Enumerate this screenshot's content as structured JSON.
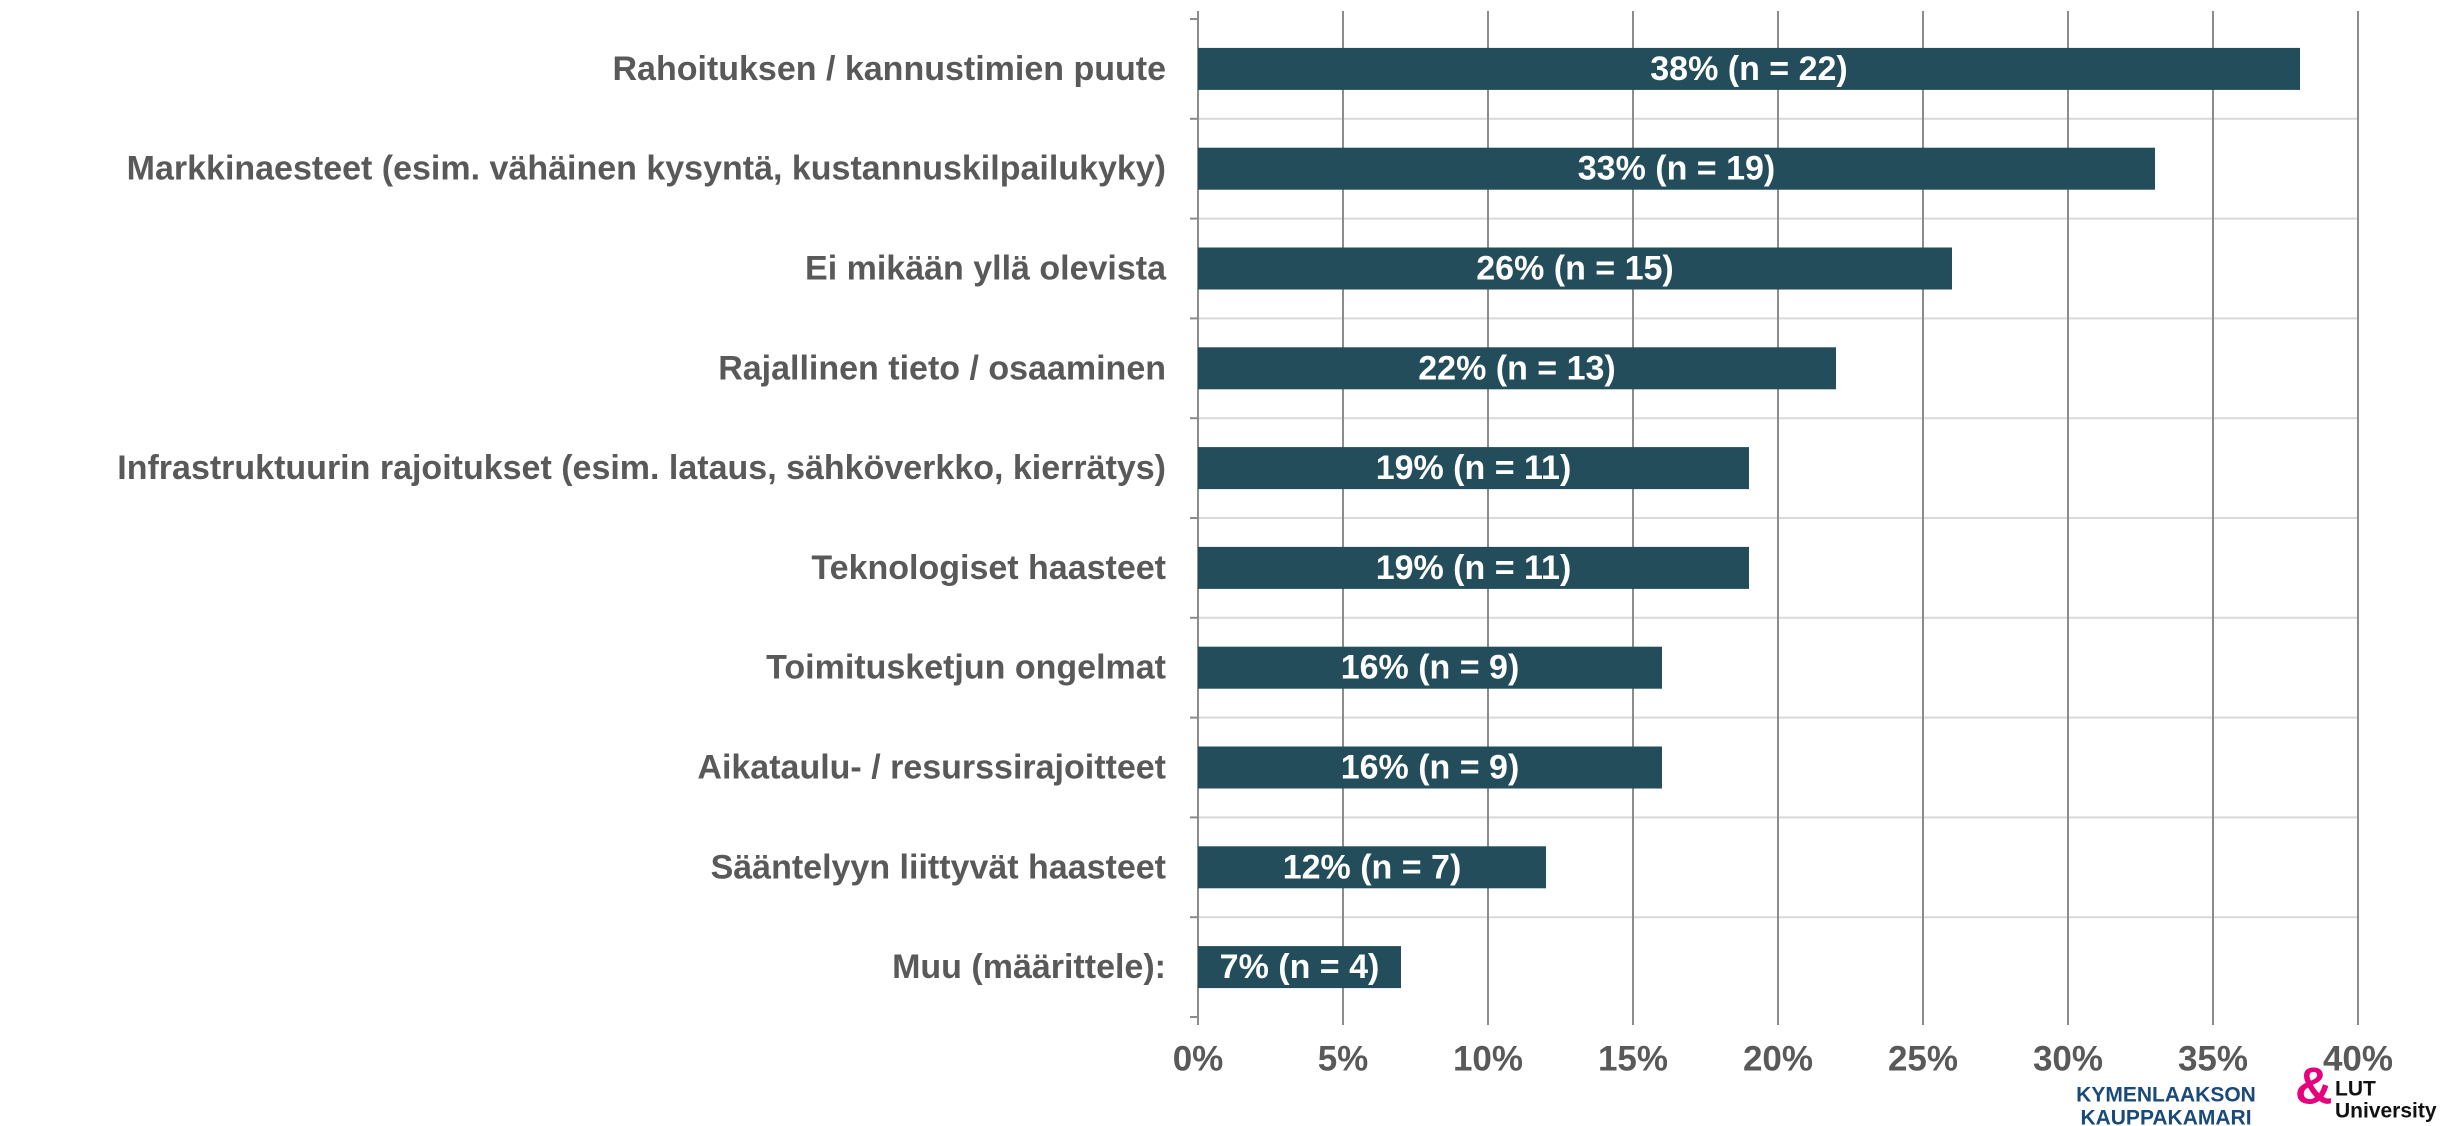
{
  "chart_data": {
    "type": "barh",
    "categories": [
      "Rahoituksen / kannustimien puute",
      "Markkinaesteet (esim. vähäinen kysyntä, kustannuskilpailukyky)",
      "Ei mikään yllä olevista",
      "Rajallinen tieto / osaaminen",
      "Infrastruktuurin rajoitukset (esim. lataus, sähköverkko, kierrätys)",
      "Teknologiset haasteet",
      "Toimitusketjun ongelmat",
      "Aikataulu- / resurssirajoitteet",
      "Sääntelyyn liittyvät haasteet",
      "Muu (määrittele):"
    ],
    "values": [
      38,
      33,
      26,
      22,
      19,
      19,
      16,
      16,
      12,
      7
    ],
    "value_labels": [
      "38% (n = 22)",
      "33% (n = 19)",
      "26% (n = 15)",
      "22% (n = 13)",
      "19% (n = 11)",
      "19% (n = 11)",
      "16% (n = 9)",
      "16% (n = 9)",
      "12% (n = 7)",
      "7% (n = 4)"
    ],
    "color": "#234d5a",
    "xlim": [
      0,
      40
    ],
    "xticks": [
      {
        "value": 0,
        "label": "0%"
      },
      {
        "value": 5,
        "label": "5%"
      },
      {
        "value": 10,
        "label": "10%"
      },
      {
        "value": 15,
        "label": "15%"
      },
      {
        "value": 20,
        "label": "20%"
      },
      {
        "value": 25,
        "label": "25%"
      },
      {
        "value": 30,
        "label": "30%"
      },
      {
        "value": 35,
        "label": "35%"
      },
      {
        "value": 40,
        "label": "40%"
      }
    ],
    "grid": true
  },
  "logos": {
    "chamber": [
      "KYMENLAAKSON",
      "KAUPPAKAMARI"
    ],
    "university": [
      "LUT",
      "University"
    ]
  }
}
